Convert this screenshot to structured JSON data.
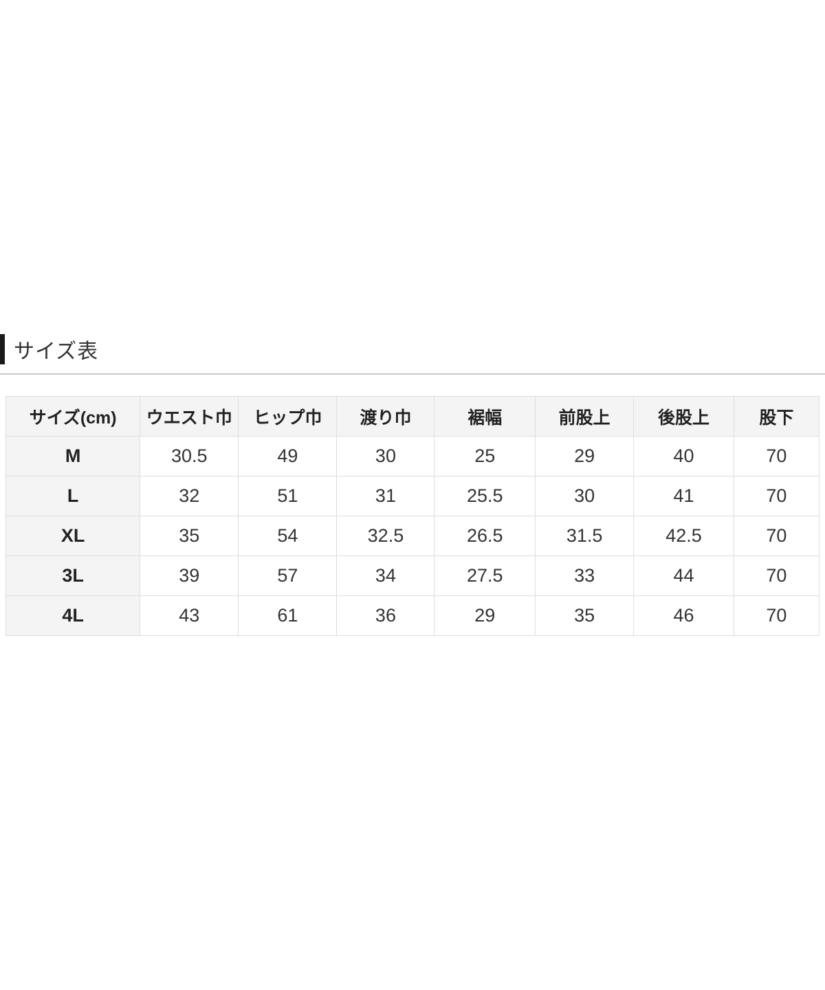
{
  "section": {
    "title": "サイズ表"
  },
  "size_table": {
    "columns": [
      "サイズ(cm)",
      "ウエスト巾",
      "ヒップ巾",
      "渡り巾",
      "裾幅",
      "前股上",
      "後股上",
      "股下"
    ],
    "rows": [
      {
        "size": "M",
        "values": [
          "30.5",
          "49",
          "30",
          "25",
          "29",
          "40",
          "70"
        ]
      },
      {
        "size": "L",
        "values": [
          "32",
          "51",
          "31",
          "25.5",
          "30",
          "41",
          "70"
        ]
      },
      {
        "size": "XL",
        "values": [
          "35",
          "54",
          "32.5",
          "26.5",
          "31.5",
          "42.5",
          "70"
        ]
      },
      {
        "size": "3L",
        "values": [
          "39",
          "57",
          "34",
          "27.5",
          "33",
          "44",
          "70"
        ]
      },
      {
        "size": "4L",
        "values": [
          "43",
          "61",
          "36",
          "29",
          "35",
          "46",
          "70"
        ]
      }
    ]
  },
  "colors": {
    "header_bg": "#f4f4f4",
    "row_label_bg": "#f4f4f4",
    "border": "#dddddd",
    "title_marker": "#1a1a1a",
    "divider": "#c8c8c8",
    "text": "#333333"
  }
}
